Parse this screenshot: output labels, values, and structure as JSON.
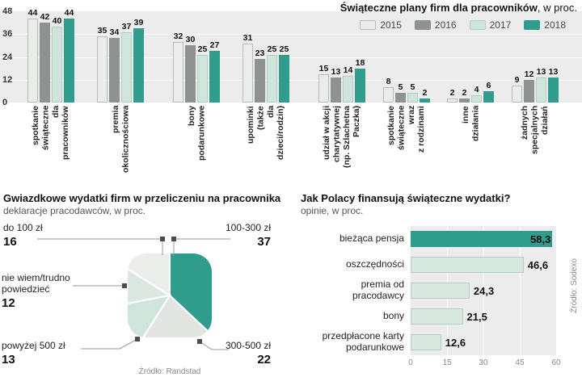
{
  "chart_data": [
    {
      "type": "bar",
      "title": "Świąteczne plany firm dla pracowników",
      "title_suffix": ", w proc.",
      "legend_position": "top-right",
      "plot_bg": "#ececec",
      "grid_color": "#ffffff",
      "ylim": [
        0,
        48
      ],
      "y_ticks": [
        48,
        36,
        24,
        12,
        0
      ],
      "categories": [
        {
          "label": "spotkanie świąteczne dla pracowników",
          "lines": [
            "spotkanie",
            "świąteczne",
            "dla",
            "pracowników"
          ]
        },
        {
          "label": "premia okolicznościowa",
          "lines": [
            "premia",
            "okolicznościowa"
          ]
        },
        {
          "label": "bony podarunkowe",
          "lines": [
            "bony",
            "podarunkowe"
          ]
        },
        {
          "label": "upominki (także dla dzieci/rodzin)",
          "lines": [
            "upominki",
            "(także",
            "dla",
            "dzieci/rodzin)"
          ]
        },
        {
          "label": "udział w akcji charytatywnej (np. Szlachetna Paczka)",
          "lines": [
            "udział w akcji",
            "charytatywnej",
            "(np. Szlachetna",
            "Paczka)"
          ]
        },
        {
          "label": "spotkanie świąteczne wraz z rodzinami",
          "lines": [
            "spotkanie",
            "świąteczne",
            "wraz",
            "z rodzinami"
          ]
        },
        {
          "label": "inne działania",
          "lines": [
            "inne",
            "działania"
          ]
        },
        {
          "label": "żadnych specjalnych działań",
          "lines": [
            "żadnych",
            "specjalnych",
            "działań"
          ]
        }
      ],
      "series": [
        {
          "name": "2015",
          "color": "#ebedea",
          "border": "#b9bdb9",
          "values": [
            44,
            35,
            32,
            31,
            15,
            8,
            2,
            9
          ]
        },
        {
          "name": "2016",
          "color": "#8e9291",
          "border": null,
          "values": [
            42,
            34,
            30,
            23,
            13,
            5,
            2,
            12
          ]
        },
        {
          "name": "2017",
          "color": "#cfe4db",
          "border": "#b3cdc2",
          "values": [
            40,
            37,
            25,
            25,
            14,
            5,
            4,
            13
          ]
        },
        {
          "name": "2018",
          "color": "#2f9c8c",
          "border": null,
          "values": [
            44,
            39,
            27,
            25,
            18,
            2,
            6,
            13
          ]
        }
      ]
    },
    {
      "type": "pie",
      "title": "Gwiazdkowe wydatki firm w przeliczeniu na pracownika",
      "subtitle": "deklaracje pracodawców, w proc.",
      "source": "Źródło: Randstad",
      "slices": [
        {
          "label": "100-300 zł",
          "value": 37,
          "color": "#2f9c8c"
        },
        {
          "label": "300-500 zł",
          "value": 22,
          "color": "#e3e5e2"
        },
        {
          "label": "powyżej 500 zł",
          "value": 13,
          "color": "#cfe4db"
        },
        {
          "label": "nie wiem/trudno powiedzieć",
          "value": 12,
          "color": "#dde7e1"
        },
        {
          "label": "do 100 zł",
          "value": 16,
          "color": "#ebedea"
        }
      ]
    },
    {
      "type": "bar-horizontal",
      "title": "Jak Polacy finansują świąteczne wydatki?",
      "subtitle": "opinie, w proc.",
      "source": "Źródło: Sodexo",
      "xlim": [
        0,
        60
      ],
      "x_ticks": [
        0,
        15,
        30,
        45,
        60
      ],
      "plot_bg": "#ececec",
      "categories": [
        "bieżąca pensja",
        "oszczędności",
        "premia od pracodawcy",
        "bony",
        "przedpłacone karty podarunkowe"
      ],
      "values": [
        58.3,
        46.6,
        24.3,
        21.5,
        12.6
      ],
      "value_labels": [
        "58,3",
        "46,6",
        "24,3",
        "21,5",
        "12,6"
      ],
      "bar_colors": [
        "#2f9c8c",
        "#d8e8df",
        "#d8e8df",
        "#d8e8df",
        "#d8e8df"
      ],
      "bar_border": "#b3cdc2"
    }
  ]
}
